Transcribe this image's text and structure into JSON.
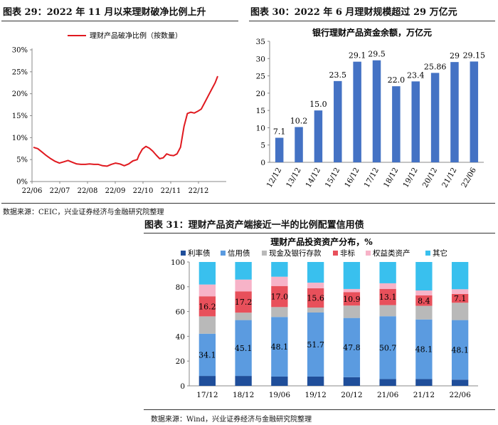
{
  "figure29": {
    "title_prefix": "图表 29：",
    "title_text": "2022 年 11 月以来理财破净比例上升",
    "chart_data": {
      "type": "line",
      "title": "",
      "legend": {
        "position": "top",
        "entries": [
          "理财产品破净比例（按数量）"
        ]
      },
      "xtick_labels": [
        "22/06",
        "22/07",
        "22/08",
        "22/09",
        "22/10",
        "22/11",
        "22/12"
      ],
      "ytick_labels": [
        "0%",
        "5%",
        "10%",
        "15%",
        "20%",
        "25%",
        "30%"
      ],
      "ylim": [
        0,
        30
      ],
      "grid": false,
      "series": [
        {
          "name": "理财产品破净比例（按数量）",
          "color": "#e0191f",
          "x": [
            "2022-06-01",
            "2022-06-06",
            "2022-06-11",
            "2022-06-16",
            "2022-06-21",
            "2022-06-26",
            "2022-07-01",
            "2022-07-06",
            "2022-07-11",
            "2022-07-16",
            "2022-07-21",
            "2022-07-26",
            "2022-07-31",
            "2022-08-05",
            "2022-08-10",
            "2022-08-15",
            "2022-08-20",
            "2022-08-25",
            "2022-08-30",
            "2022-09-04",
            "2022-09-09",
            "2022-09-14",
            "2022-09-19",
            "2022-09-24",
            "2022-09-29",
            "2022-10-01",
            "2022-10-05",
            "2022-10-09",
            "2022-10-13",
            "2022-10-17",
            "2022-10-21",
            "2022-10-25",
            "2022-10-29",
            "2022-11-02",
            "2022-11-06",
            "2022-11-10",
            "2022-11-14",
            "2022-11-18",
            "2022-11-22",
            "2022-11-26",
            "2022-11-30",
            "2022-12-04",
            "2022-12-08",
            "2022-12-12",
            "2022-12-16",
            "2022-12-20",
            "2022-12-24",
            "2022-12-28",
            "2022-12-31"
          ],
          "values": [
            7.8,
            7.5,
            6.7,
            5.9,
            5.2,
            4.6,
            4.2,
            4.5,
            4.8,
            4.4,
            4.0,
            3.9,
            3.9,
            4.0,
            3.9,
            3.9,
            3.6,
            3.5,
            3.9,
            4.2,
            4.0,
            3.6,
            4.0,
            4.7,
            5.0,
            6.0,
            7.4,
            8.0,
            7.6,
            6.9,
            6.0,
            5.2,
            5.4,
            6.3,
            6.0,
            5.9,
            6.3,
            7.8,
            12.5,
            15.5,
            15.8,
            15.6,
            16.0,
            16.5,
            18.0,
            19.5,
            21.0,
            22.5,
            24.0
          ]
        }
      ]
    }
  },
  "figure30": {
    "title_prefix": "图表 30：",
    "title_text": "2022 年 6 月理财规模超过 29 万亿元",
    "chart_data": {
      "type": "bar",
      "title": "银行理财产品资金余额，万亿元",
      "categories": [
        "12/12",
        "13/12",
        "14/12",
        "15/12",
        "16/12",
        "17/12",
        "18/12",
        "19/12",
        "20/12",
        "21/12",
        "22/06"
      ],
      "values": [
        7.1,
        10.2,
        15.0,
        23.5,
        29.1,
        29.5,
        22.0,
        23.4,
        25.86,
        29,
        29.15
      ],
      "data_labels": [
        "7.1",
        "10.2",
        "15.0",
        "23.5",
        "29.1",
        "29.5",
        "22.0",
        "23.4",
        "25.86",
        "29",
        "29.15"
      ],
      "ytick_labels": [
        "0",
        "5",
        "10",
        "15",
        "20",
        "25",
        "30",
        "35"
      ],
      "ylim": [
        0,
        35
      ],
      "color": "#4472c4",
      "grid": false
    }
  },
  "source1": "数据来源：CEIC，兴业证券经济与金融研究院整理",
  "figure31": {
    "title_prefix": "图表 31：",
    "title_text": "理财产品资产端接近一半的比例配置信用债",
    "chart_data": {
      "type": "bar",
      "stacked": true,
      "title": "理财产品投资资产分布，%",
      "legend": {
        "position": "top"
      },
      "categories": [
        "17/12",
        "18/12",
        "19/06",
        "19/12",
        "20/12",
        "21/06",
        "21/12",
        "22/06"
      ],
      "ytick_labels": [
        "0",
        "20",
        "40",
        "60",
        "80",
        "100"
      ],
      "ylim": [
        0,
        100
      ],
      "grid": false,
      "series": [
        {
          "name": "利率债",
          "color": "#1f4e9a",
          "values": [
            8,
            8,
            7.5,
            7.5,
            7,
            5.5,
            5.5,
            5
          ],
          "labels": [
            "",
            "",
            "",
            "",
            "",
            "",
            "",
            ""
          ]
        },
        {
          "name": "信用债",
          "color": "#5b9be0",
          "values": [
            34.1,
            45.1,
            48.1,
            51.7,
            47.8,
            50.7,
            48.1,
            48.1
          ],
          "labels": [
            "34.1",
            "45.1",
            "48.1",
            "51.7",
            "47.8",
            "50.7",
            "48.1",
            "48.1"
          ]
        },
        {
          "name": "现金及银行存款",
          "color": "#b9b9b9",
          "values": [
            14,
            6,
            8,
            4,
            10,
            9,
            11,
            14
          ],
          "labels": [
            "",
            "",
            "",
            "",
            "",
            "",
            "",
            ""
          ]
        },
        {
          "name": "非标",
          "color": "#e8505b",
          "values": [
            16.2,
            17.2,
            17.0,
            15.6,
            10.9,
            13.1,
            8.4,
            7.1
          ],
          "labels": [
            "16.2",
            "17.2",
            "17.0",
            "15.6",
            "10.9",
            "13.1",
            "8.4",
            "7.1"
          ]
        },
        {
          "name": "权益类资产",
          "color": "#f7b3c8",
          "values": [
            9.5,
            9.5,
            7.5,
            4.5,
            2.5,
            4.5,
            4.0,
            3.8
          ],
          "labels": [
            "",
            "",
            "",
            "",
            "",
            "",
            "",
            ""
          ]
        },
        {
          "name": "其它",
          "color": "#39c0ee",
          "values": [
            18.2,
            14.2,
            11.9,
            16.7,
            21.8,
            17.2,
            23.0,
            22.0
          ],
          "labels": [
            "",
            "",
            "",
            "",
            "",
            "",
            "",
            ""
          ]
        }
      ]
    }
  },
  "source2": "数据来源：Wind，兴业证券经济与金融研究院整理"
}
